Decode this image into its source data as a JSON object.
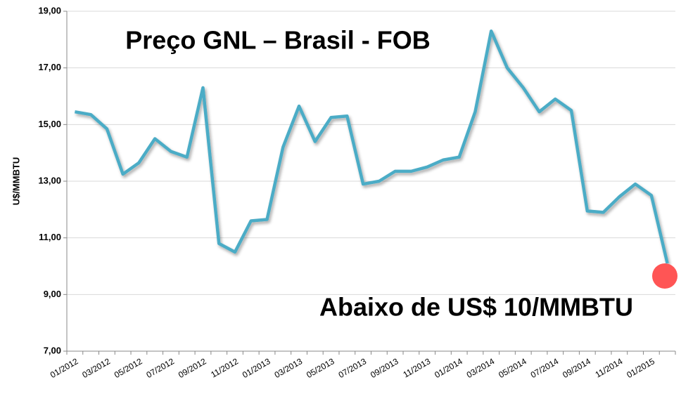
{
  "chart_data": {
    "type": "line",
    "title": "Preço GNL – Brasil - FOB",
    "annotation": "Abaixo de US$ 10/MMBTU",
    "y_label": "U$/MMBTU",
    "categories": [
      "01/2012",
      null,
      "03/2012",
      null,
      "05/2012",
      null,
      "07/2012",
      null,
      "09/2012",
      null,
      "11/2012",
      null,
      "01/2013",
      null,
      "03/2013",
      null,
      "05/2013",
      null,
      "07/2013",
      null,
      "09/2013",
      null,
      "11/2013",
      null,
      "01/2014",
      null,
      "03/2014",
      null,
      "05/2014",
      null,
      "07/2014",
      null,
      "09/2014",
      null,
      "11/2014",
      null,
      "01/2015",
      null
    ],
    "series": [
      {
        "name": "Preço GNL",
        "color": "#4bacc6",
        "values": [
          15.45,
          15.35,
          14.85,
          13.25,
          13.65,
          14.5,
          14.05,
          13.85,
          16.3,
          10.8,
          10.5,
          11.6,
          11.65,
          14.2,
          15.65,
          14.4,
          15.25,
          15.3,
          12.9,
          13.0,
          13.35,
          13.35,
          13.5,
          13.75,
          13.85,
          15.45,
          18.3,
          17.0,
          16.3,
          15.45,
          15.9,
          15.5,
          11.95,
          11.9,
          12.45,
          12.9,
          12.5,
          10.1
        ]
      }
    ],
    "ylim": [
      7,
      19
    ],
    "yticks": [
      {
        "value": 7,
        "label": "7,00"
      },
      {
        "value": 9,
        "label": "9,00"
      },
      {
        "value": 11,
        "label": "11,00"
      },
      {
        "value": 13,
        "label": "13,00"
      },
      {
        "value": 15,
        "label": "15,00"
      },
      {
        "value": 17,
        "label": "17,00"
      },
      {
        "value": 19,
        "label": "19,00"
      }
    ],
    "grid": true
  }
}
